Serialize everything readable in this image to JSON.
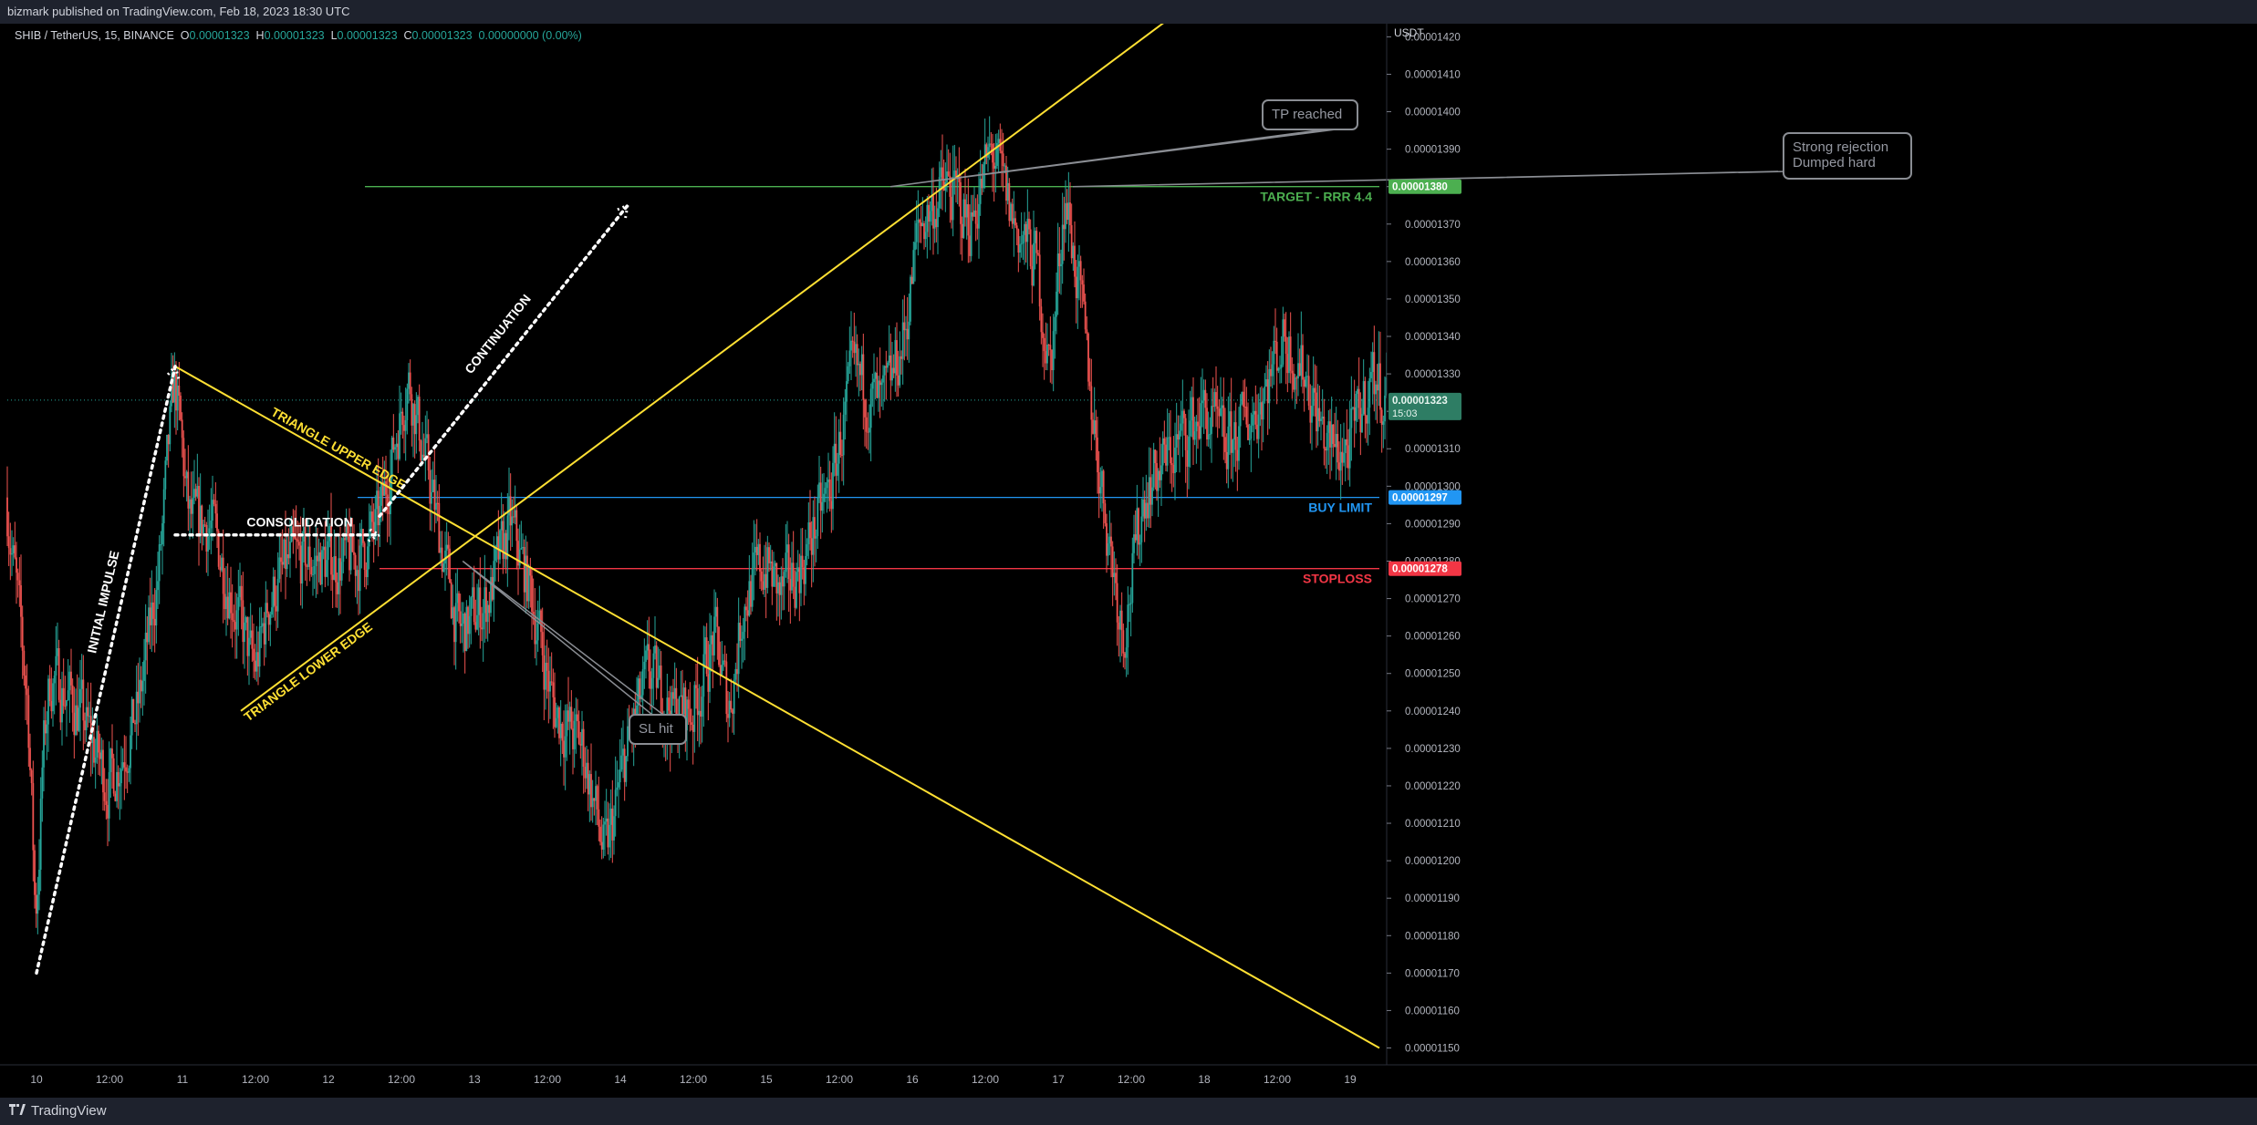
{
  "header": {
    "published": "bizmark published on TradingView.com, Feb 18, 2023 18:30 UTC"
  },
  "footer": {
    "brand": "TradingView"
  },
  "legend": {
    "symbol": "SHIB / TetherUS, 15, BINANCE",
    "o_label": "O",
    "o": "0.00001323",
    "h_label": "H",
    "h": "0.00001323",
    "l_label": "L",
    "l": "0.00001323",
    "c_label": "C",
    "c": "0.00001323",
    "change": "0.00000000 (0.00%)"
  },
  "colors": {
    "background": "#000000",
    "up": "#26a69a",
    "down": "#ef5350",
    "triangle": "#ffe033",
    "target": "#4caf50",
    "buy_limit": "#2196f3",
    "stoploss": "#f23645",
    "annotation_white": "#ffffff",
    "callout_border": "#8a8d93"
  },
  "chart_data": {
    "type": "candlestick",
    "y_axis_unit": "USDT",
    "ylim": [
      1.1455e-05,
      1.4235e-05
    ],
    "yticks": [
      "0.00001150",
      "0.00001160",
      "0.00001170",
      "0.00001180",
      "0.00001190",
      "0.00001200",
      "0.00001210",
      "0.00001220",
      "0.00001230",
      "0.00001240",
      "0.00001250",
      "0.00001260",
      "0.00001270",
      "0.00001280",
      "0.00001290",
      "0.00001300",
      "0.00001310",
      "0.00001320",
      "0.00001330",
      "0.00001340",
      "0.00001350",
      "0.00001360",
      "0.00001370",
      "0.00001380",
      "0.00001390",
      "0.00001400",
      "0.00001410",
      "0.00001420"
    ],
    "yticks_values": [
      1.15e-05,
      1.16e-05,
      1.17e-05,
      1.18e-05,
      1.19e-05,
      1.2e-05,
      1.21e-05,
      1.22e-05,
      1.23e-05,
      1.24e-05,
      1.25e-05,
      1.26e-05,
      1.27e-05,
      1.28e-05,
      1.29e-05,
      1.3e-05,
      1.31e-05,
      1.32e-05,
      1.33e-05,
      1.34e-05,
      1.35e-05,
      1.36e-05,
      1.37e-05,
      1.38e-05,
      1.39e-05,
      1.4e-05,
      1.41e-05,
      1.42e-05
    ],
    "xlim_days": [
      9.8,
      19.2
    ],
    "xticks": [
      {
        "label": "10",
        "t": 10.0
      },
      {
        "label": "12:00",
        "t": 10.5
      },
      {
        "label": "11",
        "t": 11.0
      },
      {
        "label": "12:00",
        "t": 11.5
      },
      {
        "label": "12",
        "t": 12.0
      },
      {
        "label": "12:00",
        "t": 12.5
      },
      {
        "label": "13",
        "t": 13.0
      },
      {
        "label": "12:00",
        "t": 13.5
      },
      {
        "label": "14",
        "t": 14.0
      },
      {
        "label": "12:00",
        "t": 14.5
      },
      {
        "label": "15",
        "t": 15.0
      },
      {
        "label": "12:00",
        "t": 15.5
      },
      {
        "label": "16",
        "t": 16.0
      },
      {
        "label": "12:00",
        "t": 16.5
      },
      {
        "label": "17",
        "t": 17.0
      },
      {
        "label": "12:00",
        "t": 17.5
      },
      {
        "label": "18",
        "t": 18.0
      },
      {
        "label": "12:00",
        "t": 18.5
      },
      {
        "label": "19",
        "t": 19.0
      }
    ],
    "price_path_approx": [
      [
        9.8,
        1.297e-05
      ],
      [
        9.95,
        1.24e-05
      ],
      [
        10.0,
        1.18e-05
      ],
      [
        10.05,
        1.23e-05
      ],
      [
        10.1,
        1.25e-05
      ],
      [
        10.3,
        1.24e-05
      ],
      [
        10.5,
        1.22e-05
      ],
      [
        10.7,
        1.24e-05
      ],
      [
        10.85,
        1.28e-05
      ],
      [
        10.95,
        1.33e-05
      ],
      [
        11.05,
        1.29e-05
      ],
      [
        11.2,
        1.29e-05
      ],
      [
        11.35,
        1.27e-05
      ],
      [
        11.5,
        1.25e-05
      ],
      [
        11.6,
        1.27e-05
      ],
      [
        11.75,
        1.28e-05
      ],
      [
        12.0,
        1.28e-05
      ],
      [
        12.2,
        1.28e-05
      ],
      [
        12.35,
        1.29e-05
      ],
      [
        12.45,
        1.31e-05
      ],
      [
        12.55,
        1.33e-05
      ],
      [
        12.65,
        1.31e-05
      ],
      [
        12.8,
        1.28e-05
      ],
      [
        12.9,
        1.26e-05
      ],
      [
        13.1,
        1.27e-05
      ],
      [
        13.25,
        1.29e-05
      ],
      [
        13.4,
        1.27e-05
      ],
      [
        13.55,
        1.24e-05
      ],
      [
        13.75,
        1.23e-05
      ],
      [
        13.9,
        1.2e-05
      ],
      [
        14.05,
        1.23e-05
      ],
      [
        14.2,
        1.25e-05
      ],
      [
        14.35,
        1.24e-05
      ],
      [
        14.5,
        1.24e-05
      ],
      [
        14.65,
        1.26e-05
      ],
      [
        14.75,
        1.24e-05
      ],
      [
        14.85,
        1.27e-05
      ],
      [
        15.0,
        1.28e-05
      ],
      [
        15.1,
        1.27e-05
      ],
      [
        15.25,
        1.28e-05
      ],
      [
        15.45,
        1.3e-05
      ],
      [
        15.6,
        1.33e-05
      ],
      [
        15.8,
        1.32e-05
      ],
      [
        15.95,
        1.34e-05
      ],
      [
        16.05,
        1.37e-05
      ],
      [
        16.25,
        1.38e-05
      ],
      [
        16.4,
        1.37e-05
      ],
      [
        16.55,
        1.39e-05
      ],
      [
        16.7,
        1.37e-05
      ],
      [
        16.85,
        1.36e-05
      ],
      [
        16.95,
        1.33e-05
      ],
      [
        17.05,
        1.38e-05
      ],
      [
        17.15,
        1.35e-05
      ],
      [
        17.3,
        1.3e-05
      ],
      [
        17.45,
        1.26e-05
      ],
      [
        17.6,
        1.3e-05
      ],
      [
        17.8,
        1.31e-05
      ],
      [
        18.0,
        1.32e-05
      ],
      [
        18.15,
        1.31e-05
      ],
      [
        18.35,
        1.32e-05
      ],
      [
        18.55,
        1.34e-05
      ],
      [
        18.7,
        1.33e-05
      ],
      [
        18.85,
        1.31e-05
      ],
      [
        19.0,
        1.31e-05
      ],
      [
        19.15,
        1.33e-05
      ],
      [
        19.25,
        1.323e-05
      ]
    ],
    "current_price": {
      "label": "0.00001323",
      "countdown": "15:03",
      "value": 1.323e-05
    },
    "levels": [
      {
        "id": "target",
        "price": 1.38e-05,
        "price_label": "0.00001380",
        "text": "TARGET - RRR 4.4",
        "t_start": 12.25
      },
      {
        "id": "buy_limit",
        "price": 1.297e-05,
        "price_label": "0.00001297",
        "text": "BUY LIMIT",
        "t_start": 12.2
      },
      {
        "id": "stoploss",
        "price": 1.278e-05,
        "price_label": "0.00001278",
        "text": "STOPLOSS",
        "t_start": 12.35
      }
    ],
    "trend_lines": [
      {
        "id": "triangle-upper",
        "label": "TRIANGLE UPPER EDGE",
        "p1": [
          10.95,
          1.332e-05
        ],
        "p2": [
          19.2,
          1.15e-05
        ]
      },
      {
        "id": "triangle-lower",
        "label": "TRIANGLE LOWER EDGE",
        "p1": [
          11.4,
          1.24e-05
        ],
        "p2": [
          17.8,
          1.426e-05
        ]
      }
    ],
    "dotted_paths": [
      {
        "id": "initial-impulse",
        "label": "INITIAL IMPULSE",
        "points": [
          [
            10.0,
            1.17e-05
          ],
          [
            10.95,
            1.332e-05
          ]
        ]
      },
      {
        "id": "consolidation",
        "label": "CONSOLIDATION",
        "points": [
          [
            10.95,
            1.287e-05
          ],
          [
            12.35,
            1.287e-05
          ]
        ]
      },
      {
        "id": "continuation",
        "label": "CONTINUATION",
        "points": [
          [
            12.35,
            1.292e-05
          ],
          [
            14.05,
            1.375e-05
          ]
        ]
      }
    ],
    "callouts": [
      {
        "id": "sl-hit",
        "text_lines": [
          "SL hit"
        ]
      },
      {
        "id": "tp-reached",
        "text_lines": [
          "TP reached"
        ]
      },
      {
        "id": "strong-rejection",
        "text_lines": [
          "Strong rejection",
          "Dumped hard"
        ]
      }
    ]
  }
}
